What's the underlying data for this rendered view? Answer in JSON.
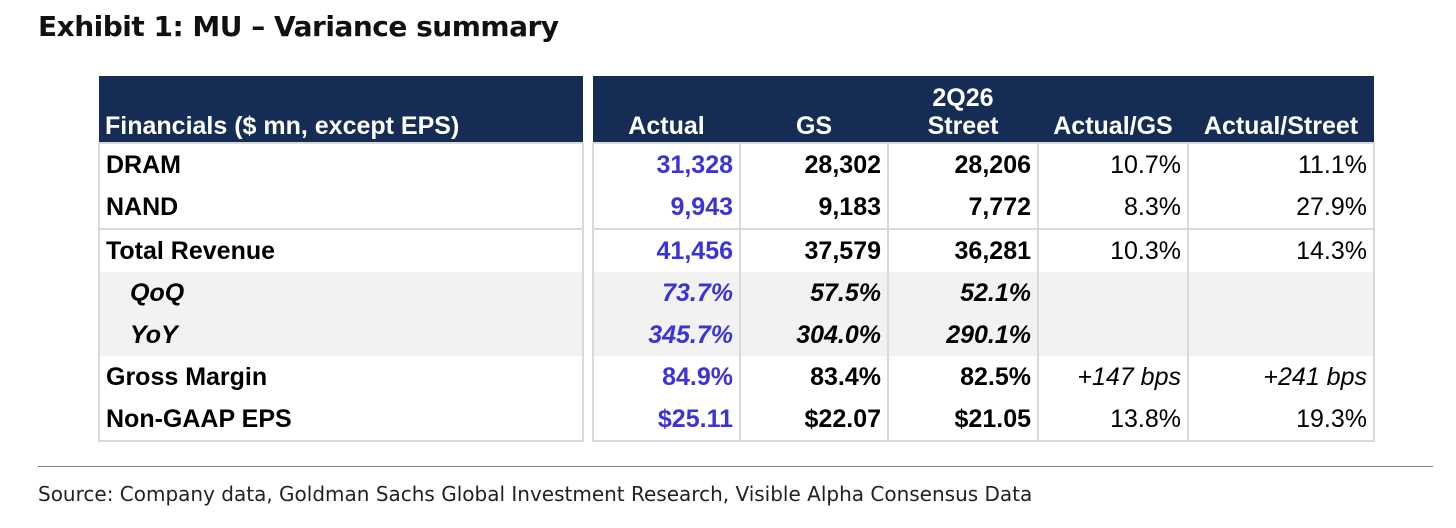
{
  "title": "Exhibit 1: MU – Variance summary",
  "header": {
    "label": "Financials ($ mn, except EPS)",
    "period": "2Q26",
    "columns": [
      "Actual",
      "GS",
      "Street",
      "Actual/GS",
      "Actual/Street"
    ]
  },
  "rows": [
    {
      "label": "DRAM",
      "actual": "31,328",
      "gs": "28,302",
      "street": "28,206",
      "vs_gs": "10.7%",
      "vs_street": "11.1%"
    },
    {
      "label": "NAND",
      "actual": "9,943",
      "gs": "9,183",
      "street": "7,772",
      "vs_gs": "8.3%",
      "vs_street": "27.9%"
    },
    {
      "label": "Total Revenue",
      "actual": "41,456",
      "gs": "37,579",
      "street": "36,281",
      "vs_gs": "10.3%",
      "vs_street": "14.3%"
    },
    {
      "label": "QoQ",
      "actual": "73.7%",
      "gs": "57.5%",
      "street": "52.1%",
      "vs_gs": "",
      "vs_street": ""
    },
    {
      "label": "YoY",
      "actual": "345.7%",
      "gs": "304.0%",
      "street": "290.1%",
      "vs_gs": "",
      "vs_street": ""
    },
    {
      "label": "Gross Margin",
      "actual": "84.9%",
      "gs": "83.4%",
      "street": "82.5%",
      "vs_gs": "+147 bps",
      "vs_street": "+241 bps"
    },
    {
      "label": "Non-GAAP EPS",
      "actual": "$25.11",
      "gs": "$22.07",
      "street": "$21.05",
      "vs_gs": "13.8%",
      "vs_street": "19.3%"
    }
  ],
  "source": "Source: Company data, Goldman Sachs Global Investment Research, Visible Alpha Consensus Data",
  "colors": {
    "header_bg": "#152d54",
    "actual_text": "#3b33d6",
    "sub_row_bg": "#f2f2f2"
  }
}
